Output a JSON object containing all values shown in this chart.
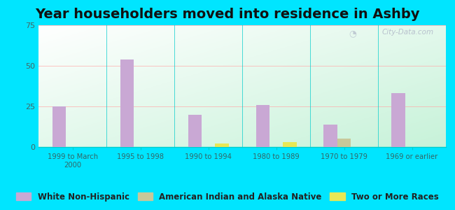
{
  "title": "Year householders moved into residence in Ashby",
  "categories": [
    "1999 to March\n2000",
    "1995 to 1998",
    "1990 to 1994",
    "1980 to 1989",
    "1970 to 1979",
    "1969 or earlier"
  ],
  "white_non_hispanic": [
    25,
    54,
    20,
    26,
    14,
    33
  ],
  "american_indian": [
    0,
    0,
    0,
    0,
    5,
    0
  ],
  "two_or_more": [
    0,
    0,
    2,
    3,
    0,
    0
  ],
  "white_color": "#c9a8d4",
  "american_indian_color": "#c8c89a",
  "two_or_more_color": "#e8e855",
  "background_outer": "#00e5ff",
  "ylim": [
    0,
    75
  ],
  "yticks": [
    0,
    25,
    50,
    75
  ],
  "bar_width": 0.2,
  "title_fontsize": 14,
  "legend_fontsize": 8.5,
  "watermark": "City-Data.com"
}
